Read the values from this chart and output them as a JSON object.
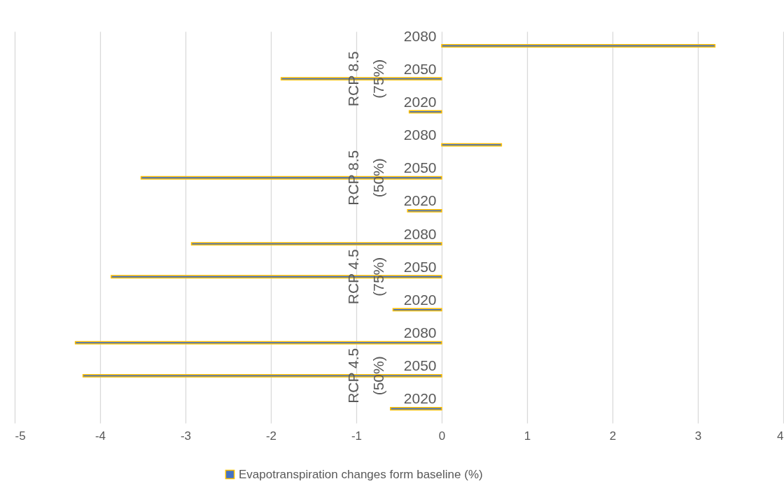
{
  "chart_data": {
    "type": "bar",
    "orientation": "horizontal",
    "categories": [
      "2080",
      "2050",
      "2020",
      "2080",
      "2050",
      "2020",
      "2080",
      "2050",
      "2020",
      "2080",
      "2050",
      "2020"
    ],
    "series": [
      {
        "name": "Evapotranspiration changes form baseline (%)",
        "color": "#4472c4",
        "values": [
          3.2,
          -1.88,
          -0.38,
          0.7,
          -3.52,
          -0.4,
          -2.93,
          -3.87,
          -0.57,
          -4.29,
          -4.2,
          -0.6
        ]
      }
    ],
    "annotations": [
      "RCP 8.5 (75%)",
      "RCP 8.5 (50%)",
      "RCP 4.5 (75%)",
      "RCP 4.5 (50%)"
    ],
    "xlim": [
      -5,
      4
    ],
    "xticks": [
      -5,
      -4,
      -3,
      -2,
      -1,
      0,
      1,
      2,
      3,
      4
    ],
    "grid": "x",
    "legend": "bottom"
  }
}
